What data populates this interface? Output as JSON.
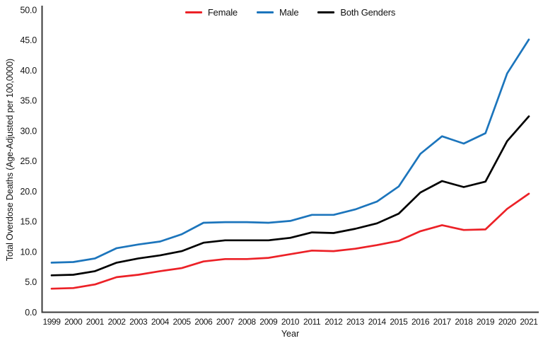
{
  "chart_data": {
    "type": "line",
    "title": "",
    "xlabel": "Year",
    "ylabel": "Total Overdose Deaths (Age-Adjusted per 100,0000)",
    "x": [
      1999,
      2000,
      2001,
      2002,
      2003,
      2004,
      2005,
      2006,
      2007,
      2008,
      2009,
      2010,
      2011,
      2012,
      2013,
      2014,
      2015,
      2016,
      2017,
      2018,
      2019,
      2020,
      2021
    ],
    "series": [
      {
        "name": "Female",
        "color": "#ec2127",
        "values": [
          3.9,
          4.0,
          4.6,
          5.8,
          6.2,
          6.8,
          7.3,
          8.4,
          8.8,
          8.8,
          9.0,
          9.6,
          10.2,
          10.1,
          10.5,
          11.1,
          11.8,
          13.4,
          14.4,
          13.6,
          13.7,
          17.1,
          19.6
        ]
      },
      {
        "name": "Male",
        "color": "#1c75bc",
        "values": [
          8.2,
          8.3,
          8.9,
          10.6,
          11.2,
          11.7,
          12.9,
          14.8,
          14.9,
          14.9,
          14.8,
          15.1,
          16.1,
          16.1,
          17.0,
          18.3,
          20.8,
          26.2,
          29.1,
          27.9,
          29.6,
          39.5,
          45.1
        ]
      },
      {
        "name": "Both Genders",
        "color": "#000000",
        "values": [
          6.1,
          6.2,
          6.8,
          8.2,
          8.9,
          9.4,
          10.1,
          11.5,
          11.9,
          11.9,
          11.9,
          12.3,
          13.2,
          13.1,
          13.8,
          14.7,
          16.3,
          19.8,
          21.7,
          20.7,
          21.6,
          28.3,
          32.4
        ]
      }
    ],
    "ylim": [
      0,
      50
    ],
    "y_ticks": [
      0,
      5,
      10,
      15,
      20,
      25,
      30,
      35,
      40,
      45,
      50
    ],
    "y_tick_labels": [
      "0.0",
      "5.0",
      "10.0",
      "15.0",
      "20.0",
      "25.0",
      "30.0",
      "35.0",
      "40.0",
      "45.0",
      "50.0"
    ],
    "grid": false,
    "legend_position": "top-center",
    "legend": [
      "Female",
      "Male",
      "Both Genders"
    ],
    "colors": {
      "axis": "#3a3a3a",
      "text": "#141414"
    }
  }
}
